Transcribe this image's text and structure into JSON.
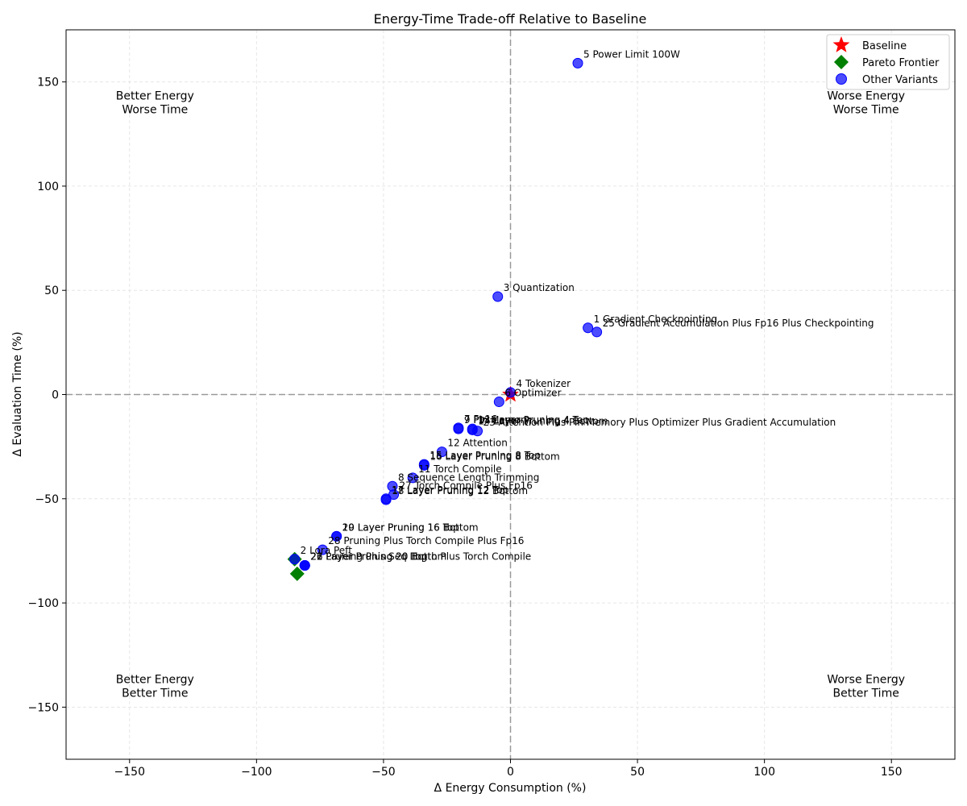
{
  "chart_data": {
    "type": "scatter",
    "title": "Energy-Time Trade-off Relative to Baseline",
    "xlabel": "Δ Energy Consumption (%)",
    "ylabel": "Δ Evaluation Time (%)",
    "xlim": [
      -175,
      175
    ],
    "ylim": [
      -175,
      175
    ],
    "xticks": [
      -150,
      -100,
      -50,
      0,
      50,
      100,
      150
    ],
    "yticks": [
      -150,
      -100,
      -50,
      0,
      50,
      100,
      150
    ],
    "xtick_labels": [
      "−150",
      "−100",
      "−50",
      "0",
      "50",
      "100",
      "150"
    ],
    "ytick_labels": [
      "−150",
      "−100",
      "−50",
      "0",
      "50",
      "100",
      "150"
    ],
    "grid": true,
    "legend_position": "top-right",
    "reference_lines": {
      "x": 0,
      "y": 0
    },
    "colors": {
      "baseline": "#ff0000",
      "pareto": "#008000",
      "other": "#0000ff",
      "reference": "#999999",
      "grid": "#e6e6e6"
    },
    "quadrant_labels": [
      {
        "lines": [
          "Better Energy",
          "Worse Time"
        ],
        "x": -140,
        "y": 140
      },
      {
        "lines": [
          "Worse Energy",
          "Worse Time"
        ],
        "x": 140,
        "y": 140
      },
      {
        "lines": [
          "Better Energy",
          "Better Time"
        ],
        "x": -140,
        "y": -140
      },
      {
        "lines": [
          "Worse Energy",
          "Better Time"
        ],
        "x": 140,
        "y": -140
      }
    ],
    "series": [
      {
        "name": "Baseline",
        "marker": "star",
        "color": "#ff0000",
        "points": [
          {
            "x": 0,
            "y": 0,
            "label": ""
          }
        ]
      },
      {
        "name": "Pareto Frontier",
        "marker": "diamond",
        "color": "#008000",
        "points": [
          {
            "x": -85,
            "y": -79,
            "label": ""
          },
          {
            "x": -84,
            "y": -86,
            "label": ""
          }
        ]
      },
      {
        "name": "Other Variants",
        "marker": "circle",
        "color": "#0000ff",
        "points": [
          {
            "x": 26.5,
            "y": 159,
            "label": "5 Power Limit 100W"
          },
          {
            "x": -5,
            "y": 47,
            "label": "3 Quantization"
          },
          {
            "x": 30.5,
            "y": 32,
            "label": "1 Gradient Checkpointing"
          },
          {
            "x": 34,
            "y": 30,
            "label": "25 Gradient Accumulation Plus Fp16 Plus Checkpointing"
          },
          {
            "x": 0,
            "y": 1,
            "label": "4 Tokenizer"
          },
          {
            "x": -4.5,
            "y": -3.5,
            "label": "6 Optimizer"
          },
          {
            "x": -20.5,
            "y": -16,
            "label": "7 Fp16"
          },
          {
            "x": -20.5,
            "y": -16.5,
            "label": "9 Pin Memory"
          },
          {
            "x": -15,
            "y": -16.5,
            "label": "13 Layer Pruning 4 Top"
          },
          {
            "x": -15,
            "y": -17,
            "label": "14 Layer Pruning 4 Bottom"
          },
          {
            "x": -13,
            "y": -17.5,
            "label": "23 Attention Plus Pin Memory Plus Optimizer Plus Gradient Accumulation"
          },
          {
            "x": -27,
            "y": -27.5,
            "label": "12 Attention"
          },
          {
            "x": -34,
            "y": -33.5,
            "label": "15 Layer Pruning 8 Top"
          },
          {
            "x": -34,
            "y": -34,
            "label": "16 Layer Pruning 8 Bottom"
          },
          {
            "x": -38.5,
            "y": -40,
            "label": "11 Torch Compile"
          },
          {
            "x": -46.5,
            "y": -44,
            "label": "8 Sequence Length Trimming"
          },
          {
            "x": -46,
            "y": -48,
            "label": "27 Torch Compile Plus Fp16"
          },
          {
            "x": -49,
            "y": -50,
            "label": "17 Layer Pruning 12 Top"
          },
          {
            "x": -49,
            "y": -50.5,
            "label": "18 Layer Pruning 12 Bottom"
          },
          {
            "x": -68.5,
            "y": -68,
            "label": "19 Layer Pruning 16 Top"
          },
          {
            "x": -68.5,
            "y": -68,
            "label": "20 Layer Pruning 16 Bottom"
          },
          {
            "x": -74,
            "y": -74.5,
            "label": "28 Pruning Plus Torch Compile Plus Fp16"
          },
          {
            "x": -85,
            "y": -79,
            "label": "2 Lora Peft"
          },
          {
            "x": -81,
            "y": -82,
            "label": "26 Pruning Plus Seq Lngth Plus Torch Compile"
          },
          {
            "x": -81,
            "y": -82,
            "label": "21 Layer Pruning 20 Top"
          },
          {
            "x": -81,
            "y": -82,
            "label": "22 Layer Pruning 20 Bottom"
          }
        ]
      }
    ]
  }
}
